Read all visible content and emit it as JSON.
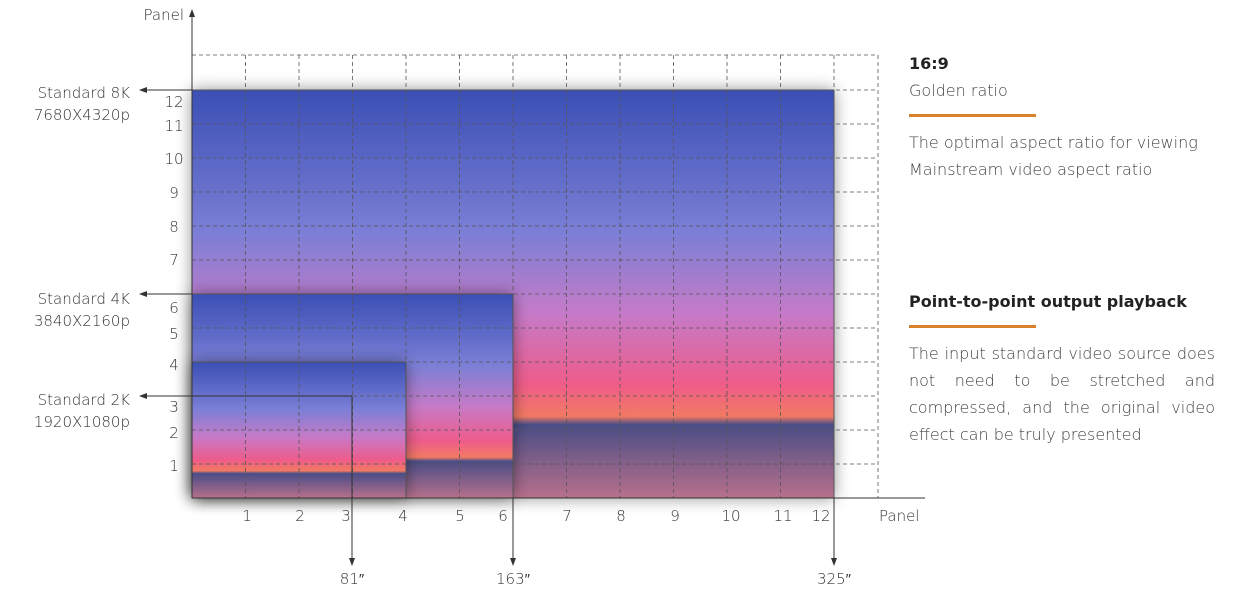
{
  "y_axis_label": "Panel",
  "x_axis_label": "Panel",
  "x_ticks": [
    "1",
    "2",
    "3",
    "4",
    "5",
    "6",
    "7",
    "8",
    "9",
    "10",
    "11",
    "12"
  ],
  "y_ticks": [
    "1",
    "2",
    "3",
    "4",
    "5",
    "6",
    "7",
    "8",
    "9",
    "10",
    "11",
    "12"
  ],
  "standards": [
    {
      "name": "Standard 8K",
      "resolution": "7680X4320p",
      "size": "325″"
    },
    {
      "name": "Standard 4K",
      "resolution": "3840X2160p",
      "size": "163″"
    },
    {
      "name": "Standard 2K",
      "resolution": "1920X1080p",
      "size": "81″"
    }
  ],
  "sections": [
    {
      "title": "16:9",
      "subtitle": "Golden ratio",
      "lines": [
        "The optimal aspect ratio for viewing",
        "Mainstream video aspect ratio"
      ]
    },
    {
      "title": "Point-to-point output playback",
      "text": "The input standard video source does not need to be stretched and compressed, and the original video effect can be truly presented"
    }
  ]
}
